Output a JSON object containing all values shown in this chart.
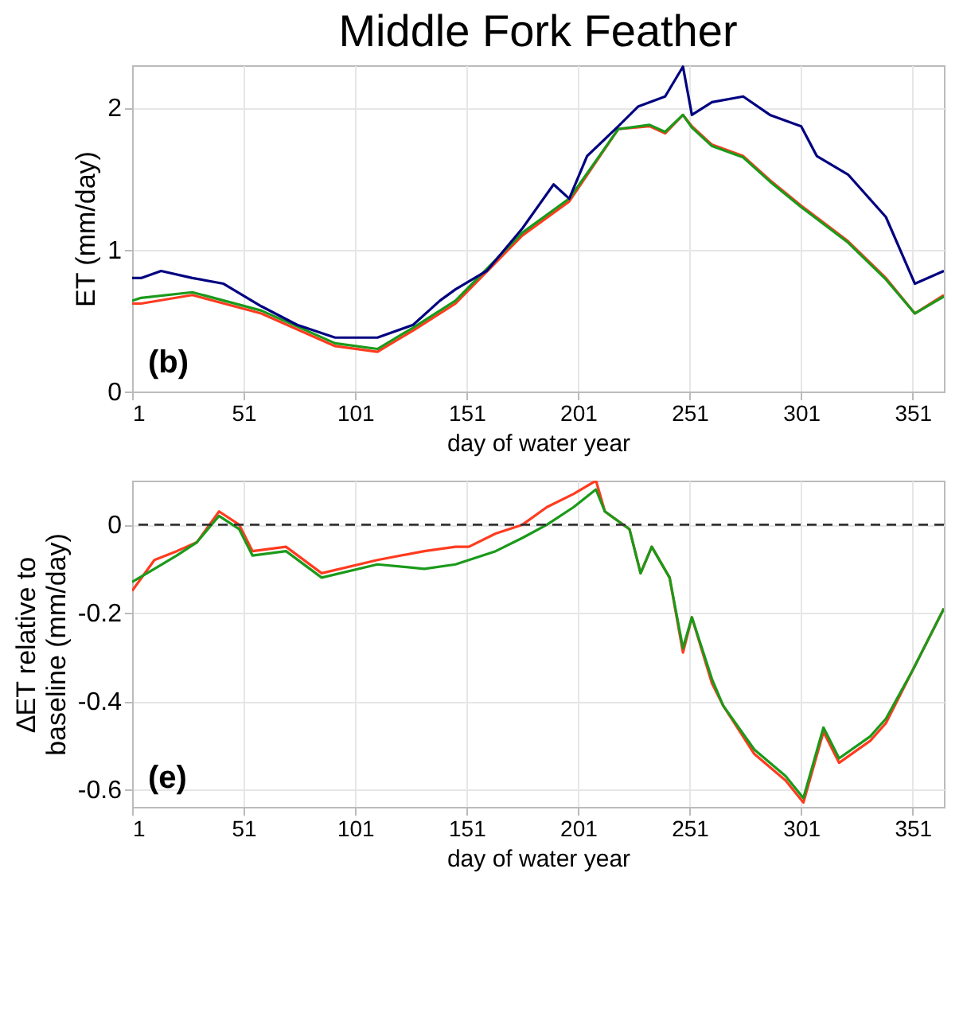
{
  "chart_data": [
    {
      "type": "line",
      "title": "Middle Fork Feather",
      "xlabel": "day of water year",
      "ylabel": "ET (mm/day)",
      "annotations": [
        "(b)"
      ],
      "xlim": [
        1,
        365
      ],
      "xticks": [
        1,
        51,
        101,
        151,
        201,
        251,
        301,
        351
      ],
      "ylim": [
        0,
        2.3
      ],
      "yticks": [
        0,
        1,
        2
      ],
      "grid": true,
      "series": [
        {
          "color": "#ff3b1f",
          "x": [
            1,
            5,
            28,
            59,
            92,
            111,
            127,
            146,
            176,
            197,
            219,
            233,
            240,
            248,
            252,
            261,
            275,
            287,
            301,
            322,
            339,
            352,
            365
          ],
          "values": [
            0.62,
            0.62,
            0.68,
            0.55,
            0.32,
            0.28,
            0.43,
            0.62,
            1.1,
            1.34,
            1.85,
            1.87,
            1.82,
            1.95,
            1.87,
            1.74,
            1.66,
            1.49,
            1.31,
            1.06,
            0.8,
            0.55,
            0.68
          ]
        },
        {
          "color": "#1a9a1a",
          "x": [
            1,
            5,
            28,
            59,
            92,
            111,
            127,
            146,
            176,
            197,
            219,
            233,
            240,
            248,
            252,
            261,
            275,
            287,
            301,
            322,
            339,
            352,
            365
          ],
          "values": [
            0.64,
            0.66,
            0.7,
            0.57,
            0.34,
            0.3,
            0.45,
            0.64,
            1.12,
            1.36,
            1.85,
            1.88,
            1.83,
            1.95,
            1.86,
            1.73,
            1.65,
            1.48,
            1.3,
            1.05,
            0.79,
            0.55,
            0.67
          ]
        },
        {
          "color": "#000080",
          "x": [
            1,
            5,
            14,
            28,
            42,
            59,
            75,
            92,
            111,
            127,
            139,
            146,
            160,
            176,
            190,
            197,
            205,
            219,
            228,
            240,
            248,
            252,
            261,
            275,
            287,
            301,
            308,
            322,
            339,
            352,
            365
          ],
          "values": [
            0.8,
            0.8,
            0.85,
            0.8,
            0.76,
            0.6,
            0.47,
            0.38,
            0.38,
            0.47,
            0.64,
            0.72,
            0.85,
            1.15,
            1.46,
            1.36,
            1.66,
            1.87,
            2.01,
            2.08,
            2.29,
            1.95,
            2.04,
            2.08,
            1.95,
            1.87,
            1.66,
            1.53,
            1.23,
            0.76,
            0.85
          ]
        }
      ]
    },
    {
      "type": "line",
      "xlabel": "day of water year",
      "ylabel": "∆ET relative to\nbaseline (mm/day)",
      "annotations": [
        "(e)"
      ],
      "xlim": [
        1,
        365
      ],
      "xticks": [
        1,
        51,
        101,
        151,
        201,
        251,
        301,
        351
      ],
      "ylim": [
        -0.64,
        0.1
      ],
      "yticks": [
        -0.6,
        -0.4,
        -0.2,
        0
      ],
      "grid": true,
      "ref_lines": [
        {
          "axis": "y",
          "value": 0,
          "color": "#333333",
          "line_style": "dashed"
        }
      ],
      "series": [
        {
          "color": "#ff3b1f",
          "x": [
            1,
            11,
            21,
            30,
            40,
            49,
            55,
            70,
            86,
            111,
            132,
            146,
            152,
            164,
            176,
            187,
            199,
            209,
            213,
            224,
            229,
            234,
            242,
            248,
            252,
            261,
            266,
            280,
            294,
            302,
            311,
            318,
            332,
            339,
            351,
            365
          ],
          "values": [
            -0.15,
            -0.08,
            -0.06,
            -0.04,
            0.03,
            0.0,
            -0.06,
            -0.05,
            -0.11,
            -0.08,
            -0.06,
            -0.05,
            -0.05,
            -0.02,
            0,
            0.04,
            0.07,
            0.1,
            0.03,
            -0.01,
            -0.11,
            -0.05,
            -0.12,
            -0.29,
            -0.21,
            -0.36,
            -0.41,
            -0.52,
            -0.58,
            -0.63,
            -0.47,
            -0.54,
            -0.49,
            -0.45,
            -0.33,
            -0.19
          ]
        },
        {
          "color": "#1a9a1a",
          "x": [
            1,
            11,
            21,
            30,
            40,
            49,
            55,
            70,
            86,
            111,
            132,
            146,
            152,
            164,
            176,
            187,
            199,
            209,
            213,
            224,
            229,
            234,
            242,
            248,
            252,
            261,
            266,
            280,
            294,
            302,
            311,
            318,
            332,
            339,
            351,
            365
          ],
          "values": [
            -0.13,
            -0.1,
            -0.07,
            -0.04,
            0.02,
            -0.01,
            -0.07,
            -0.06,
            -0.12,
            -0.09,
            -0.1,
            -0.09,
            -0.08,
            -0.06,
            -0.03,
            0.0,
            0.04,
            0.08,
            0.03,
            -0.01,
            -0.11,
            -0.05,
            -0.12,
            -0.28,
            -0.21,
            -0.35,
            -0.41,
            -0.51,
            -0.57,
            -0.62,
            -0.46,
            -0.53,
            -0.48,
            -0.44,
            -0.33,
            -0.19
          ]
        }
      ]
    }
  ]
}
